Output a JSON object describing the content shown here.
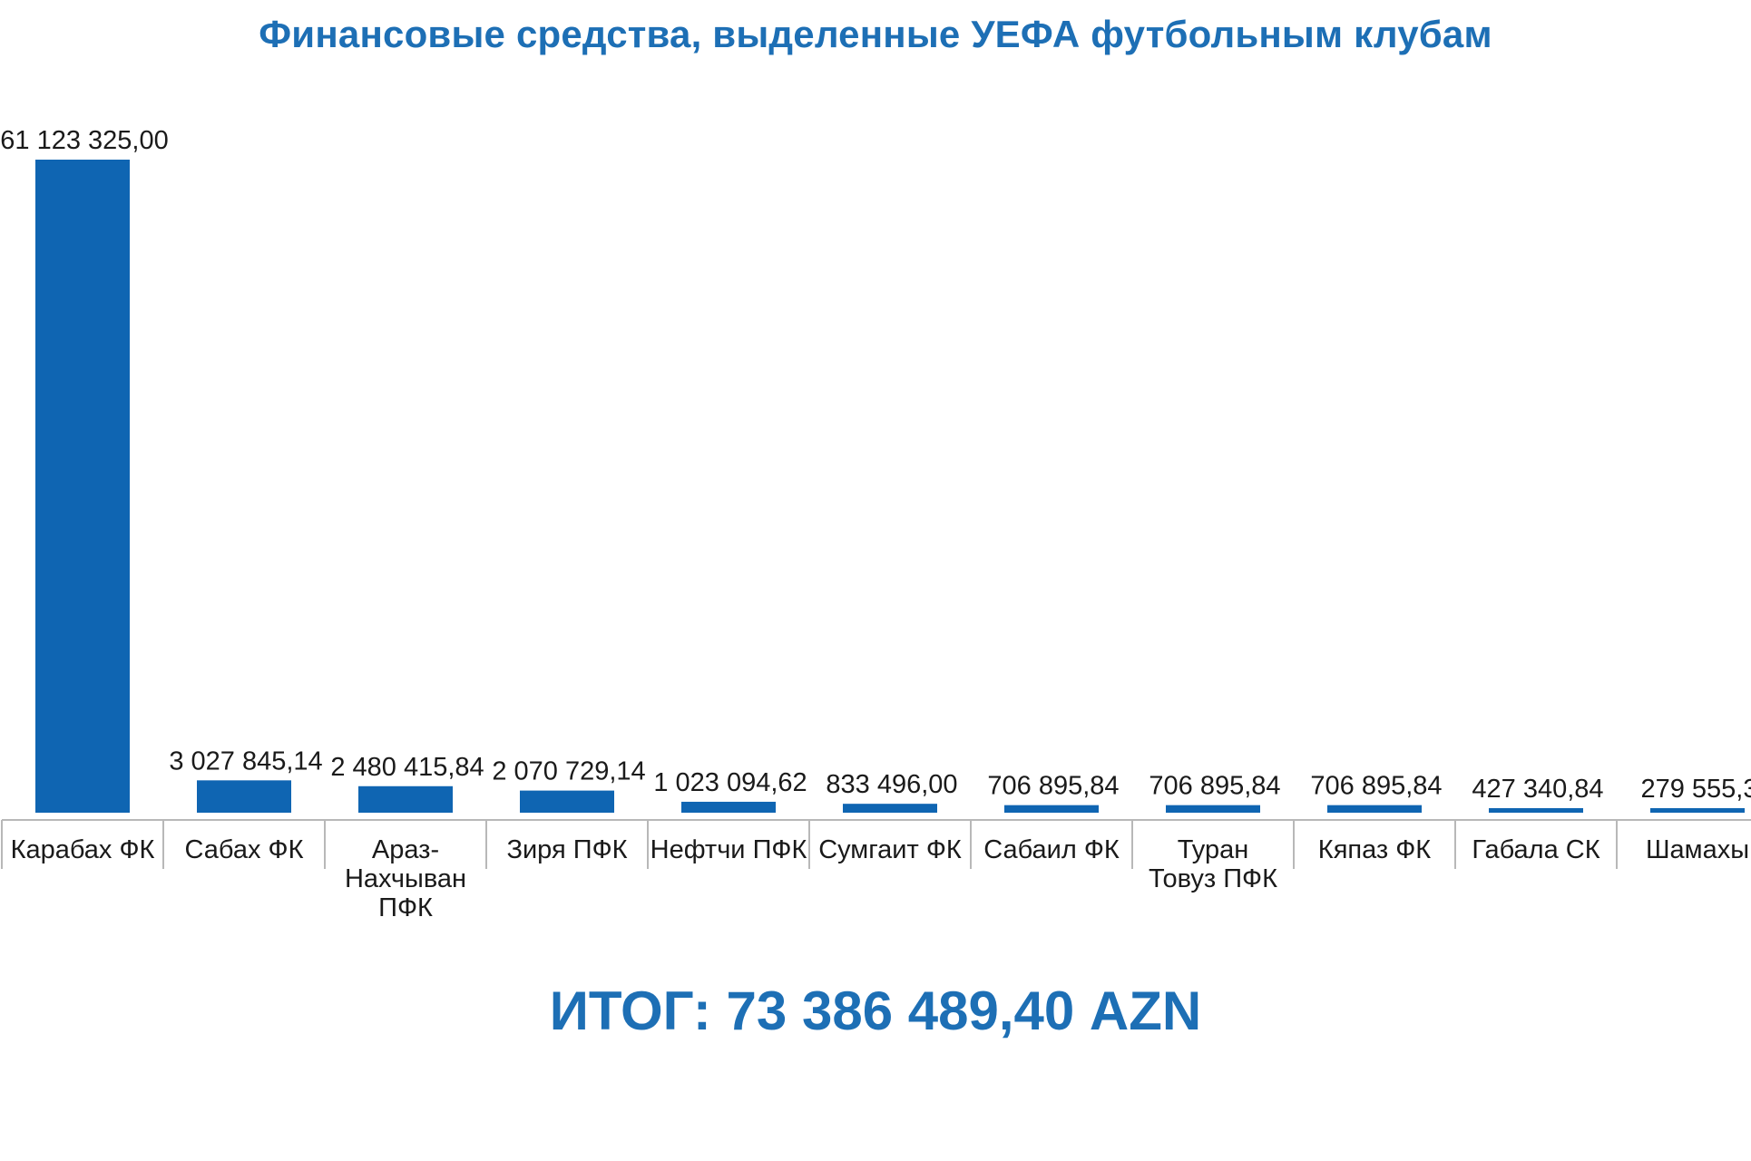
{
  "title": "Финансовые средства, выделенные УЕФА футбольным клубам",
  "total_text": "ИТОГ: 73 386 489,40 AZN",
  "colors": {
    "bar": "#0f65b2",
    "title": "#1d6fb5",
    "axis": "#b8b8b8"
  },
  "chart_data": {
    "type": "bar",
    "categories": [
      [
        "Карабах ФК"
      ],
      [
        "Сабах ФК"
      ],
      [
        "Араз-",
        "Нахчыван",
        "ПФК"
      ],
      [
        "Зиря ПФК"
      ],
      [
        "Нефтчи ПФК"
      ],
      [
        "Сумгаит ФК"
      ],
      [
        "Сабаил ФК"
      ],
      [
        "Туран",
        "Товуз ПФК"
      ],
      [
        "Кяпаз ФК"
      ],
      [
        "Габала СК"
      ],
      [
        "Шамахы"
      ]
    ],
    "values": [
      61123325.0,
      3027845.14,
      2480415.84,
      2070729.14,
      1023094.62,
      833496.0,
      706895.84,
      706895.84,
      706895.84,
      427340.84,
      279555.3
    ],
    "value_labels": [
      "61 123 325,00",
      "3 027 845,14",
      "2 480 415,84",
      "2 070 729,14",
      "1 023 094,62",
      "833 496,00",
      "706 895,84",
      "706 895,84",
      "706 895,84",
      "427 340,84",
      "279 555,3"
    ],
    "ylim": [
      0,
      61123325.0
    ],
    "grid": false,
    "legend": "none"
  }
}
